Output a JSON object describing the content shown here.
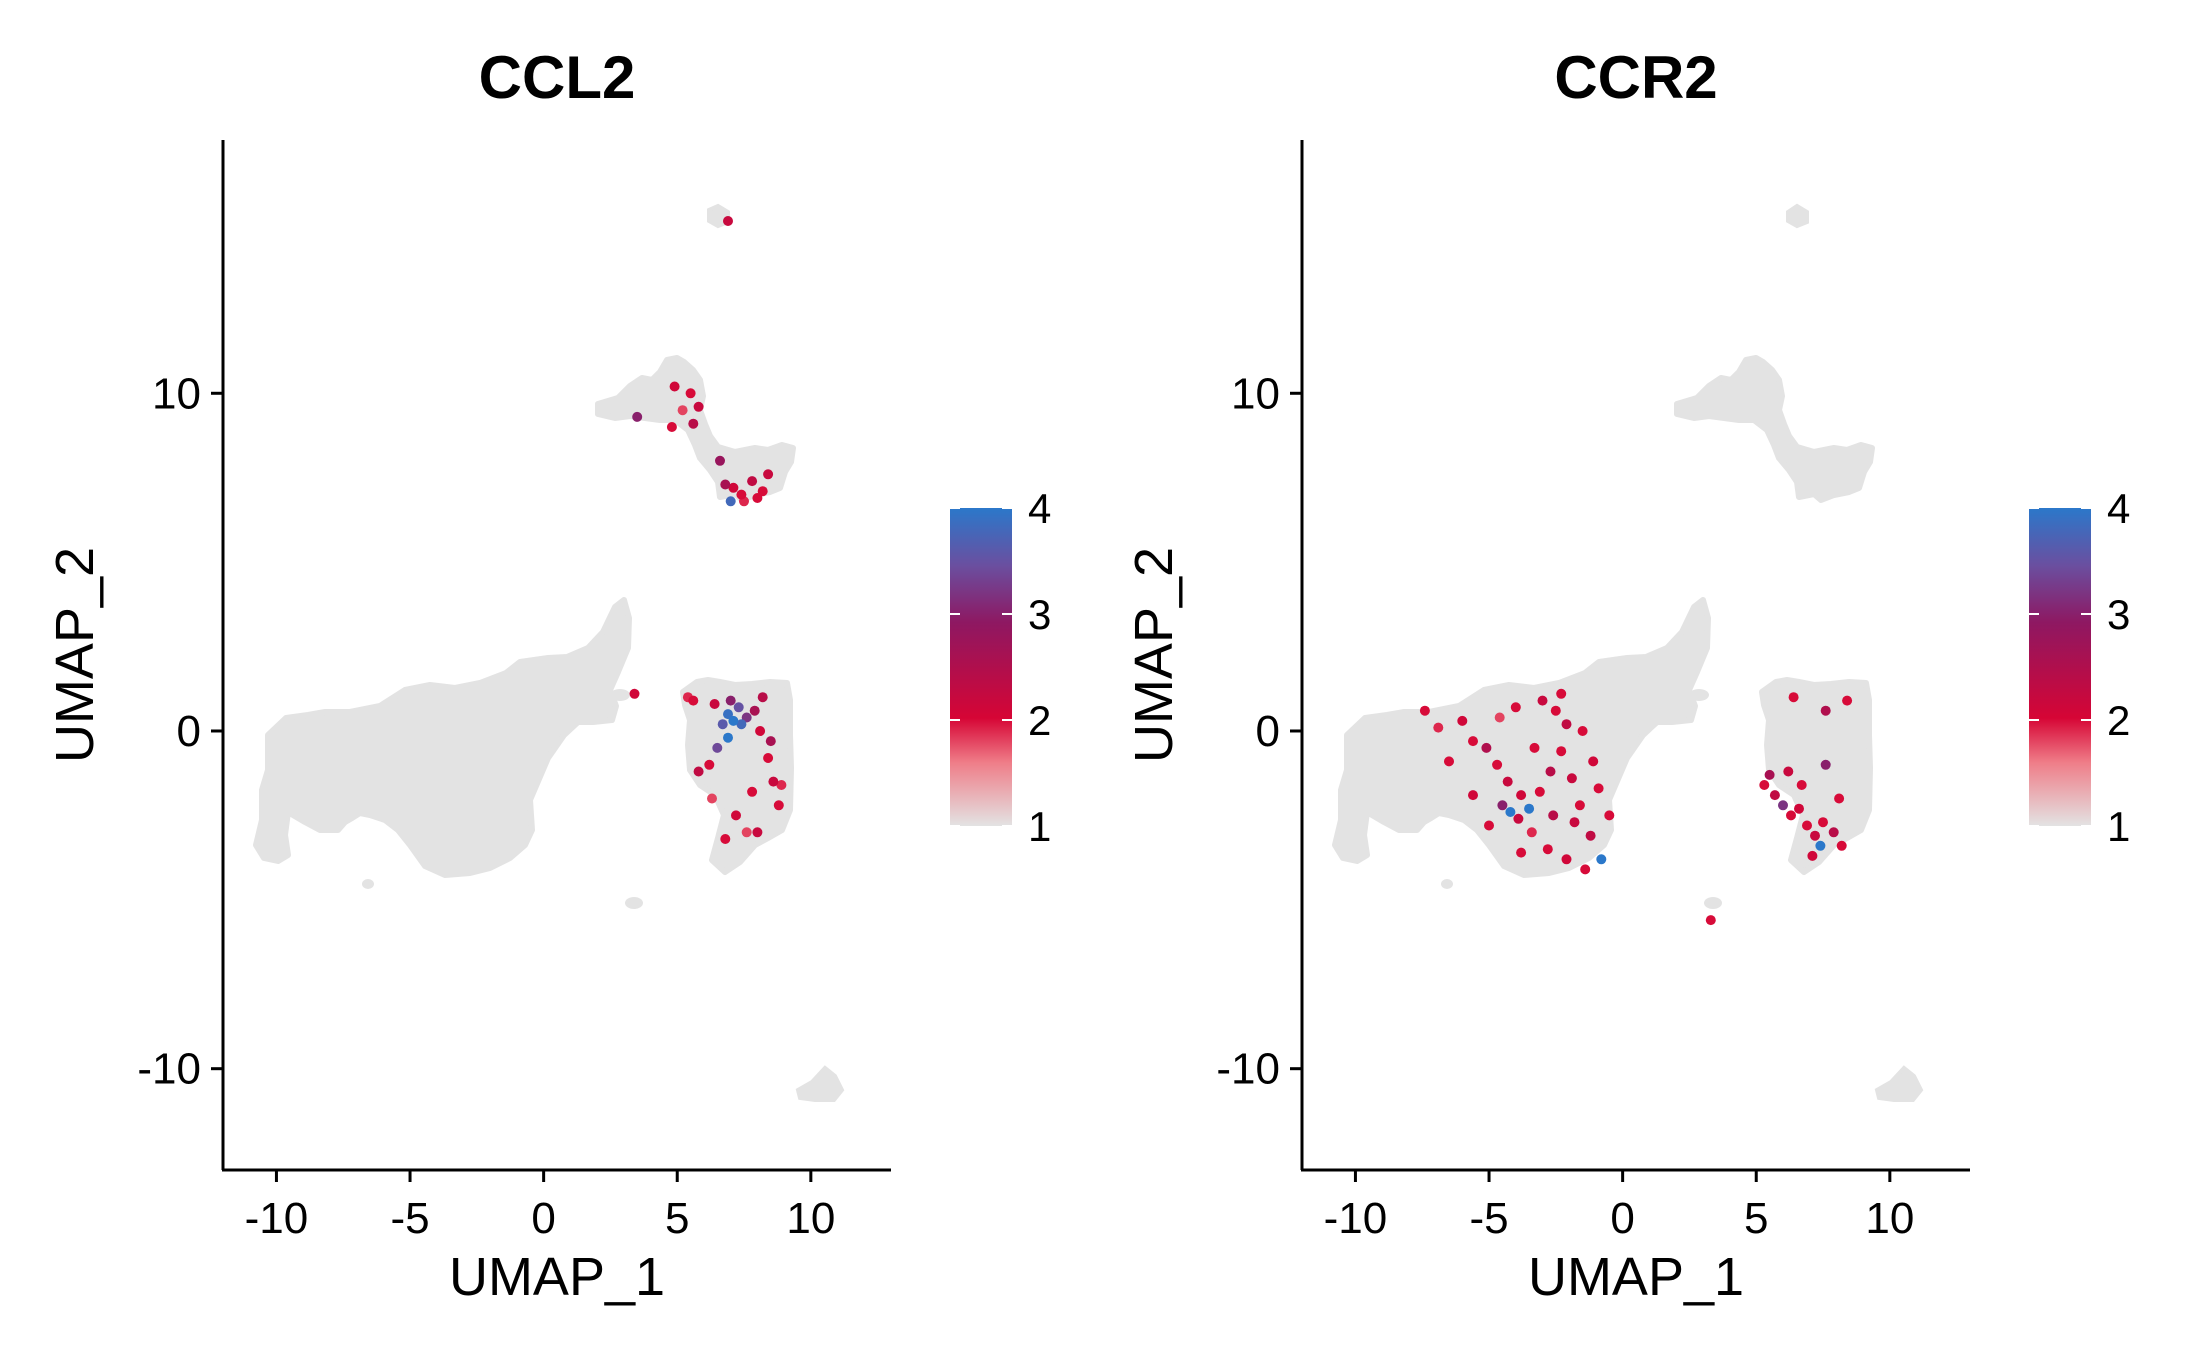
{
  "panels": [
    {
      "title": "CCL2",
      "xlabel": "UMAP_1",
      "ylabel": "UMAP_2"
    },
    {
      "title": "CCR2",
      "xlabel": "UMAP_1",
      "ylabel": "UMAP_2"
    }
  ],
  "colors": {
    "background_cells": "#e3e3e3",
    "scale": [
      "#e3e3e3",
      "#ef7d88",
      "#d60535",
      "#8e1862",
      "#6a4fa0",
      "#2b78ca"
    ]
  },
  "chart_data": [
    {
      "type": "scatter",
      "title": "CCL2",
      "xlabel": "UMAP_1",
      "ylabel": "UMAP_2",
      "xlim": [
        -12,
        13
      ],
      "ylim": [
        -13,
        17.5
      ],
      "xticks": [
        -10,
        -5,
        0,
        5,
        10
      ],
      "xtick_labels": [
        "-10",
        "-5",
        "0",
        "5",
        "10"
      ],
      "yticks": [
        -10,
        0,
        10
      ],
      "ytick_labels": [
        "-10",
        "0",
        "10"
      ],
      "colorbar": {
        "min": 1,
        "max": 4,
        "ticks": [
          1,
          2,
          3,
          4
        ],
        "tick_labels": [
          "1",
          "2",
          "3",
          "4"
        ]
      },
      "expressing_cells": [
        {
          "x": 6.4,
          "y": 0.8,
          "v": 2.2
        },
        {
          "x": 6.7,
          "y": 0.2,
          "v": 3.6
        },
        {
          "x": 6.9,
          "y": -0.2,
          "v": 4.0
        },
        {
          "x": 7.1,
          "y": 0.3,
          "v": 4.0
        },
        {
          "x": 7.4,
          "y": 0.2,
          "v": 3.8
        },
        {
          "x": 7.6,
          "y": 0.4,
          "v": 3.2
        },
        {
          "x": 7.9,
          "y": 0.6,
          "v": 2.6
        },
        {
          "x": 6.5,
          "y": -0.5,
          "v": 3.4
        },
        {
          "x": 6.2,
          "y": -1.0,
          "v": 2.0
        },
        {
          "x": 5.8,
          "y": -1.2,
          "v": 2.3
        },
        {
          "x": 8.1,
          "y": 0.0,
          "v": 2.1
        },
        {
          "x": 8.4,
          "y": -0.8,
          "v": 2.0
        },
        {
          "x": 8.6,
          "y": -1.5,
          "v": 2.2
        },
        {
          "x": 8.9,
          "y": -1.6,
          "v": 1.9
        },
        {
          "x": 8.8,
          "y": -2.2,
          "v": 2.0
        },
        {
          "x": 7.2,
          "y": -2.5,
          "v": 2.1
        },
        {
          "x": 7.6,
          "y": -3.0,
          "v": 1.8
        },
        {
          "x": 6.8,
          "y": -3.2,
          "v": 2.0
        },
        {
          "x": 8.0,
          "y": -3.0,
          "v": 2.2
        },
        {
          "x": 5.6,
          "y": 0.9,
          "v": 2.0
        },
        {
          "x": 7.0,
          "y": 0.9,
          "v": 3.0
        },
        {
          "x": 3.4,
          "y": 1.1,
          "v": 2.1
        },
        {
          "x": 5.4,
          "y": 1.0,
          "v": 1.9
        },
        {
          "x": 8.2,
          "y": 1.0,
          "v": 2.4
        },
        {
          "x": 7.8,
          "y": -1.8,
          "v": 2.0
        },
        {
          "x": 6.3,
          "y": -2.0,
          "v": 1.8
        },
        {
          "x": 8.5,
          "y": -0.3,
          "v": 2.6
        },
        {
          "x": 4.9,
          "y": 10.2,
          "v": 2.1
        },
        {
          "x": 5.5,
          "y": 10.0,
          "v": 2.0
        },
        {
          "x": 5.8,
          "y": 9.6,
          "v": 2.2
        },
        {
          "x": 4.8,
          "y": 9.0,
          "v": 2.0
        },
        {
          "x": 5.2,
          "y": 9.5,
          "v": 1.8
        },
        {
          "x": 3.5,
          "y": 9.3,
          "v": 3.0
        },
        {
          "x": 5.6,
          "y": 9.1,
          "v": 2.4
        },
        {
          "x": 6.6,
          "y": 8.0,
          "v": 2.8
        },
        {
          "x": 7.1,
          "y": 7.2,
          "v": 2.1
        },
        {
          "x": 7.4,
          "y": 7.0,
          "v": 2.0
        },
        {
          "x": 7.8,
          "y": 7.4,
          "v": 2.3
        },
        {
          "x": 8.2,
          "y": 7.1,
          "v": 2.0
        },
        {
          "x": 8.4,
          "y": 7.6,
          "v": 2.2
        },
        {
          "x": 6.8,
          "y": 7.3,
          "v": 2.6
        },
        {
          "x": 8.0,
          "y": 6.9,
          "v": 2.0
        },
        {
          "x": 7.5,
          "y": 6.8,
          "v": 1.9
        },
        {
          "x": 7.0,
          "y": 6.8,
          "v": 3.8
        },
        {
          "x": 6.9,
          "y": 15.1,
          "v": 2.2
        },
        {
          "x": 6.9,
          "y": 0.5,
          "v": 3.9
        },
        {
          "x": 7.3,
          "y": 0.7,
          "v": 3.5
        }
      ]
    },
    {
      "type": "scatter",
      "title": "CCR2",
      "xlabel": "UMAP_1",
      "ylabel": "UMAP_2",
      "xlim": [
        -12,
        13
      ],
      "ylim": [
        -13,
        17.5
      ],
      "xticks": [
        -10,
        -5,
        0,
        5,
        10
      ],
      "xtick_labels": [
        "-10",
        "-5",
        "0",
        "5",
        "10"
      ],
      "yticks": [
        -10,
        0,
        10
      ],
      "ytick_labels": [
        "-10",
        "0",
        "10"
      ],
      "colorbar": {
        "min": 1,
        "max": 4,
        "ticks": [
          1,
          2,
          3,
          4
        ],
        "tick_labels": [
          "1",
          "2",
          "3",
          "4"
        ]
      },
      "expressing_cells": [
        {
          "x": -7.4,
          "y": 0.6,
          "v": 2.0
        },
        {
          "x": -6.9,
          "y": 0.1,
          "v": 1.9
        },
        {
          "x": -6.0,
          "y": 0.3,
          "v": 2.1
        },
        {
          "x": -5.6,
          "y": -0.3,
          "v": 2.0
        },
        {
          "x": -5.1,
          "y": -0.5,
          "v": 2.5
        },
        {
          "x": -4.7,
          "y": -1.0,
          "v": 2.0
        },
        {
          "x": -4.3,
          "y": -1.5,
          "v": 2.2
        },
        {
          "x": -3.8,
          "y": -1.9,
          "v": 2.1
        },
        {
          "x": -3.5,
          "y": -2.3,
          "v": 4.0
        },
        {
          "x": -3.1,
          "y": -1.8,
          "v": 2.0
        },
        {
          "x": -2.7,
          "y": -1.2,
          "v": 2.4
        },
        {
          "x": -2.3,
          "y": -0.6,
          "v": 2.0
        },
        {
          "x": -1.9,
          "y": -1.4,
          "v": 2.2
        },
        {
          "x": -1.6,
          "y": -2.2,
          "v": 2.0
        },
        {
          "x": -1.2,
          "y": -3.1,
          "v": 2.3
        },
        {
          "x": -0.8,
          "y": -3.8,
          "v": 4.0
        },
        {
          "x": -1.4,
          "y": -4.1,
          "v": 2.0
        },
        {
          "x": -2.1,
          "y": -3.8,
          "v": 2.1
        },
        {
          "x": -2.8,
          "y": -3.5,
          "v": 2.0
        },
        {
          "x": -3.4,
          "y": -3.0,
          "v": 1.9
        },
        {
          "x": -3.9,
          "y": -2.6,
          "v": 2.2
        },
        {
          "x": -4.5,
          "y": -2.2,
          "v": 3.0
        },
        {
          "x": -5.0,
          "y": -2.8,
          "v": 2.0
        },
        {
          "x": -5.6,
          "y": -1.9,
          "v": 2.1
        },
        {
          "x": -2.5,
          "y": 0.6,
          "v": 2.0
        },
        {
          "x": -2.1,
          "y": 0.2,
          "v": 2.3
        },
        {
          "x": -1.5,
          "y": 0.0,
          "v": 2.0
        },
        {
          "x": -1.1,
          "y": -0.9,
          "v": 2.1
        },
        {
          "x": -0.9,
          "y": -1.7,
          "v": 2.0
        },
        {
          "x": -3.0,
          "y": 0.9,
          "v": 2.2
        },
        {
          "x": -4.0,
          "y": 0.7,
          "v": 2.0
        },
        {
          "x": -4.6,
          "y": 0.4,
          "v": 1.8
        },
        {
          "x": -3.3,
          "y": -0.5,
          "v": 2.0
        },
        {
          "x": -2.6,
          "y": -2.5,
          "v": 2.4
        },
        {
          "x": -3.8,
          "y": -3.6,
          "v": 2.0
        },
        {
          "x": -1.8,
          "y": -2.7,
          "v": 2.2
        },
        {
          "x": -2.3,
          "y": 1.1,
          "v": 2.0
        },
        {
          "x": -0.5,
          "y": -2.5,
          "v": 2.0
        },
        {
          "x": -4.2,
          "y": -2.4,
          "v": 4.0
        },
        {
          "x": -6.5,
          "y": -0.9,
          "v": 2.0
        },
        {
          "x": 5.3,
          "y": -1.6,
          "v": 2.0
        },
        {
          "x": 5.7,
          "y": -1.9,
          "v": 2.3
        },
        {
          "x": 6.0,
          "y": -2.2,
          "v": 3.2
        },
        {
          "x": 6.3,
          "y": -2.5,
          "v": 2.0
        },
        {
          "x": 6.6,
          "y": -2.3,
          "v": 2.1
        },
        {
          "x": 6.9,
          "y": -2.8,
          "v": 2.0
        },
        {
          "x": 7.2,
          "y": -3.1,
          "v": 2.2
        },
        {
          "x": 7.5,
          "y": -2.7,
          "v": 2.0
        },
        {
          "x": 7.9,
          "y": -3.0,
          "v": 2.4
        },
        {
          "x": 8.2,
          "y": -3.4,
          "v": 2.0
        },
        {
          "x": 7.1,
          "y": -3.7,
          "v": 2.1
        },
        {
          "x": 6.7,
          "y": -1.6,
          "v": 2.0
        },
        {
          "x": 6.2,
          "y": -1.2,
          "v": 2.2
        },
        {
          "x": 7.6,
          "y": -1.0,
          "v": 3.0
        },
        {
          "x": 8.1,
          "y": -2.0,
          "v": 2.0
        },
        {
          "x": 6.4,
          "y": 1.0,
          "v": 2.0
        },
        {
          "x": 7.6,
          "y": 0.6,
          "v": 2.5
        },
        {
          "x": 8.4,
          "y": 0.9,
          "v": 2.0
        },
        {
          "x": 5.5,
          "y": -1.3,
          "v": 2.6
        },
        {
          "x": 7.4,
          "y": -3.4,
          "v": 4.0
        },
        {
          "x": 3.3,
          "y": -5.6,
          "v": 2.0
        }
      ]
    }
  ]
}
